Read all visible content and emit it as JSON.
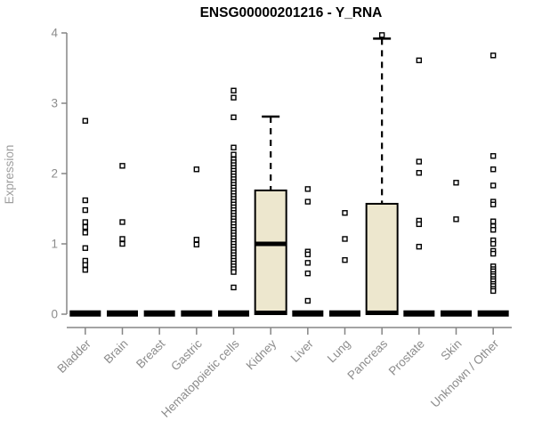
{
  "title": "ENSG00000201216 - Y_RNA",
  "chart_data": {
    "type": "boxplot",
    "title": "ENSG00000201216 - Y_RNA",
    "xlabel": "",
    "ylabel": "Expression",
    "ylim": [
      0,
      4
    ],
    "yticks": [
      0,
      1,
      2,
      3,
      4
    ],
    "grid": false,
    "legend": "none",
    "colors": {
      "box_fill": "#ede7ce",
      "box_stroke": "#000000",
      "axis": "#858585",
      "tick_label": "#8c8c8c",
      "axis_label": "#9e9e9e",
      "background": "#ffffff"
    },
    "categories": [
      "Bladder",
      "Brain",
      "Breast",
      "Gastric",
      "Hematopoietic cells",
      "Kidney",
      "Liver",
      "Lung",
      "Pancreas",
      "Prostate",
      "Skin",
      "Unknown / Other"
    ],
    "boxes": [
      {
        "category": "Bladder",
        "q1": 0,
        "median": 0,
        "q3": 0.02,
        "whisker_low": 0,
        "whisker_high": 0.02,
        "outliers": [
          2.75,
          1.62,
          1.48,
          1.31,
          1.24,
          1.16,
          0.94,
          0.76,
          0.7,
          0.63
        ]
      },
      {
        "category": "Brain",
        "q1": 0,
        "median": 0,
        "q3": 0.02,
        "whisker_low": 0,
        "whisker_high": 0.02,
        "outliers": [
          2.11,
          1.31,
          1.07,
          1.0
        ]
      },
      {
        "category": "Breast",
        "q1": 0,
        "median": 0,
        "q3": 0.02,
        "whisker_low": 0,
        "whisker_high": 0.02,
        "outliers": []
      },
      {
        "category": "Gastric",
        "q1": 0,
        "median": 0,
        "q3": 0.02,
        "whisker_low": 0,
        "whisker_high": 0.02,
        "outliers": [
          2.06,
          1.06,
          0.99
        ]
      },
      {
        "category": "Hematopoietic cells",
        "q1": 0,
        "median": 0,
        "q3": 0.02,
        "whisker_low": 0,
        "whisker_high": 0.02,
        "outliers": [
          3.18,
          3.08,
          2.8,
          2.37,
          2.27,
          2.2,
          2.16,
          2.12,
          2.08,
          2.04,
          2.0,
          1.96,
          1.92,
          1.88,
          1.84,
          1.8,
          1.76,
          1.72,
          1.68,
          1.64,
          1.6,
          1.56,
          1.52,
          1.48,
          1.44,
          1.4,
          1.36,
          1.32,
          1.28,
          1.24,
          1.2,
          1.16,
          1.12,
          1.08,
          1.04,
          1.0,
          0.96,
          0.92,
          0.88,
          0.84,
          0.8,
          0.76,
          0.72,
          0.68,
          0.64,
          0.6,
          0.38
        ]
      },
      {
        "category": "Kidney",
        "q1": 0,
        "median": 1.0,
        "q3": 1.76,
        "whisker_low": 0,
        "whisker_high": 2.81,
        "outliers": []
      },
      {
        "category": "Liver",
        "q1": 0,
        "median": 0,
        "q3": 0.02,
        "whisker_low": 0,
        "whisker_high": 0.02,
        "outliers": [
          1.78,
          1.6,
          0.89,
          0.85,
          0.73,
          0.58,
          0.19
        ]
      },
      {
        "category": "Lung",
        "q1": 0,
        "median": 0,
        "q3": 0.02,
        "whisker_low": 0,
        "whisker_high": 0.02,
        "outliers": [
          1.44,
          1.07,
          0.77
        ]
      },
      {
        "category": "Pancreas",
        "q1": 0,
        "median": 0.02,
        "q3": 1.57,
        "whisker_low": 0,
        "whisker_high": 3.92,
        "outliers": [
          3.97
        ]
      },
      {
        "category": "Prostate",
        "q1": 0,
        "median": 0,
        "q3": 0.02,
        "whisker_low": 0,
        "whisker_high": 0.02,
        "outliers": [
          3.61,
          2.17,
          2.01,
          1.33,
          1.28,
          0.96
        ]
      },
      {
        "category": "Skin",
        "q1": 0,
        "median": 0,
        "q3": 0.02,
        "whisker_low": 0,
        "whisker_high": 0.02,
        "outliers": [
          1.87,
          1.35
        ]
      },
      {
        "category": "Unknown / Other",
        "q1": 0,
        "median": 0,
        "q3": 0.02,
        "whisker_low": 0,
        "whisker_high": 0.02,
        "outliers": [
          3.68,
          2.25,
          2.06,
          1.83,
          1.6,
          1.56,
          1.32,
          1.25,
          1.2,
          1.05,
          1.0,
          0.9,
          0.86,
          0.68,
          0.64,
          0.61,
          0.57,
          0.54,
          0.5,
          0.47,
          0.43,
          0.4,
          0.36,
          0.33
        ]
      }
    ]
  }
}
